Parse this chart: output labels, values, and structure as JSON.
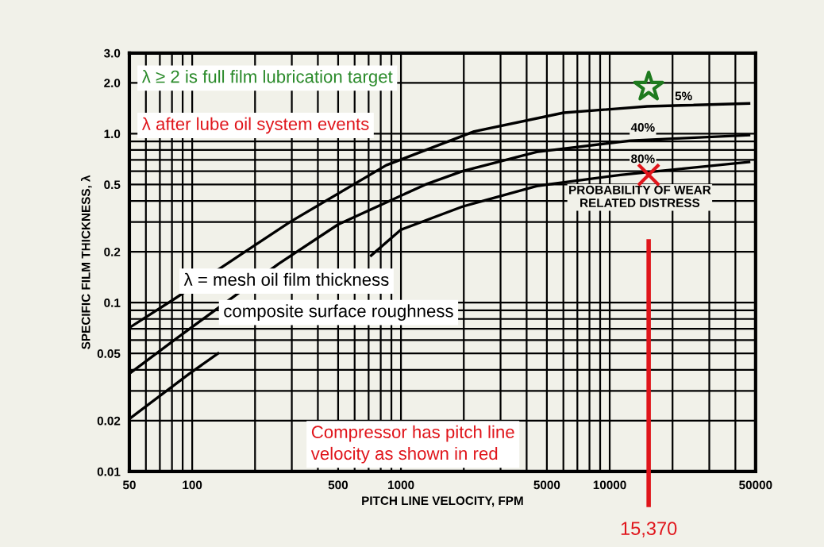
{
  "chart_data": {
    "type": "line",
    "xlabel": "PITCH LINE VELOCITY, FPM",
    "ylabel": "SPECIFIC FILM THICKNESS, λ",
    "log": "xy",
    "grid": true,
    "marker": "none",
    "line_style": "solid",
    "xlim": [
      50,
      50000
    ],
    "ylim": [
      0.01,
      3.0
    ],
    "xticks": [
      50,
      100,
      500,
      1000,
      5000,
      10000,
      50000
    ],
    "yticks": [
      0.01,
      0.02,
      0.05,
      0.1,
      0.2,
      0.5,
      {
        "value": 1.0,
        "label": "1.0"
      },
      {
        "value": 2.0,
        "label": "2.0"
      },
      {
        "value": 3.0,
        "label": "3.0"
      }
    ],
    "series": [
      {
        "color": "#000000",
        "x": [
          50,
          83,
          179,
          294,
          850,
          2240,
          6020,
          15130,
          46500
        ],
        "values": [
          0.071,
          0.106,
          0.2,
          0.3,
          0.65,
          1.03,
          1.33,
          1.45,
          1.51
        ]
      },
      {
        "color": "#000000",
        "x": [
          50,
          85,
          260,
          500,
          1310,
          1970,
          4470,
          12600,
          46500
        ],
        "values": [
          0.038,
          0.062,
          0.17,
          0.29,
          0.5,
          0.6,
          0.78,
          0.91,
          0.98
        ]
      },
      {
        "color": "#000000",
        "x": [
          50,
          97,
          133,
          245,
          510,
          720,
          1000,
          1970,
          4470,
          11240,
          46500
        ],
        "values": [
          0.0205,
          0.038,
          0.05,
          null,
          null,
          0.19,
          0.27,
          0.37,
          0.49,
          0.57,
          0.68
        ]
      },
      {
        "type": "scatter",
        "marker": "star",
        "color": "#1e7a1e",
        "x": [
          15370
        ],
        "values": [
          1.89
        ]
      },
      {
        "type": "scatter",
        "marker": "cross",
        "color": "#e0151b",
        "x": [
          15370
        ],
        "values": [
          0.57
        ]
      }
    ],
    "ref_lines": [
      {
        "axis": "x",
        "value": 15370,
        "label": "15,370",
        "color": "#e0151b"
      }
    ],
    "annotations": [
      "5%",
      "40%",
      "80%",
      "PROBABILITY OF WEAR\nRELATED DISTRESS",
      "λ ≥ 2 is full film lubrication target",
      "λ after lube oil system events",
      "λ = mesh oil film thickness",
      "composite surface roughness",
      "Compressor has pitch line\nvelocity as shown in red"
    ]
  }
}
